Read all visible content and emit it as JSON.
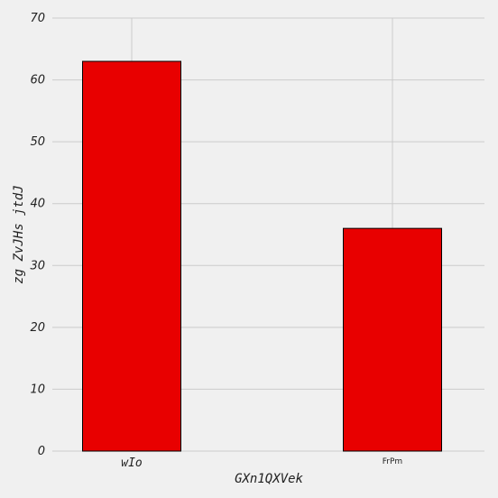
{
  "chart_data": {
    "type": "bar",
    "categories": [
      "wIo",
      "FrPm"
    ],
    "values": [
      63,
      36
    ],
    "xlabel": "GXn1QXVek",
    "ylabel": "zg ZvJHs jtdJ",
    "ylim": [
      0,
      70
    ],
    "yticks": [
      0,
      10,
      20,
      30,
      40,
      50,
      60,
      70
    ],
    "grid": true,
    "bar_color": "#e80000",
    "bar_edge_color": "#000000",
    "grid_color": "#cbcbcb",
    "background": "#f0f0f0"
  }
}
